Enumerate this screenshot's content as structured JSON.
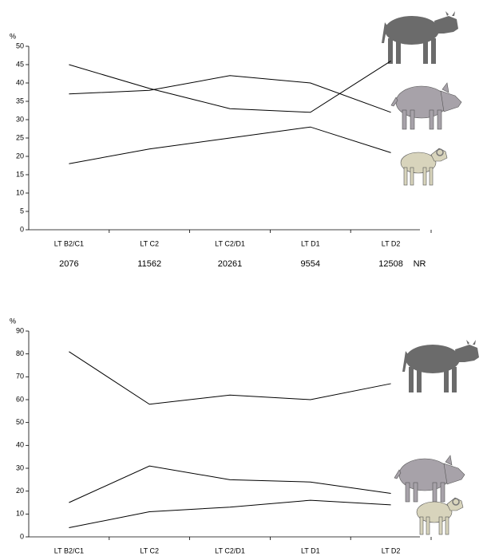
{
  "chart_data": [
    {
      "type": "line",
      "ylabel": "%",
      "categories": [
        "LT B2/C1",
        "LT C2",
        "LT C2/D1",
        "LT D1",
        "LT D2"
      ],
      "series": [
        {
          "color": "#000000",
          "values": [
            45,
            38.5,
            33,
            32,
            46
          ]
        },
        {
          "color": "#000000",
          "values": [
            37,
            38,
            42,
            40,
            32
          ]
        },
        {
          "color": "#000000",
          "values": [
            18,
            22,
            25,
            28,
            21
          ]
        }
      ],
      "ylim": [
        0,
        50
      ],
      "yticks": [
        0,
        5,
        10,
        15,
        20,
        25,
        30,
        35,
        40,
        45,
        50
      ],
      "nr": {
        "label": "NR",
        "values": [
          2076,
          11562,
          20261,
          9554,
          12508
        ]
      }
    },
    {
      "type": "line",
      "ylabel": "%",
      "categories": [
        "LT B2/C1",
        "LT C2",
        "LT C2/D1",
        "LT D1",
        "LT D2"
      ],
      "series": [
        {
          "color": "#000000",
          "values": [
            81,
            58,
            62,
            60,
            67
          ]
        },
        {
          "color": "#000000",
          "values": [
            15,
            31,
            25,
            24,
            19
          ]
        },
        {
          "color": "#000000",
          "values": [
            4,
            11,
            13,
            16,
            14
          ]
        }
      ],
      "ylim": [
        0,
        90
      ],
      "yticks": [
        0,
        10,
        20,
        30,
        40,
        50,
        60,
        70,
        80,
        90
      ]
    }
  ]
}
